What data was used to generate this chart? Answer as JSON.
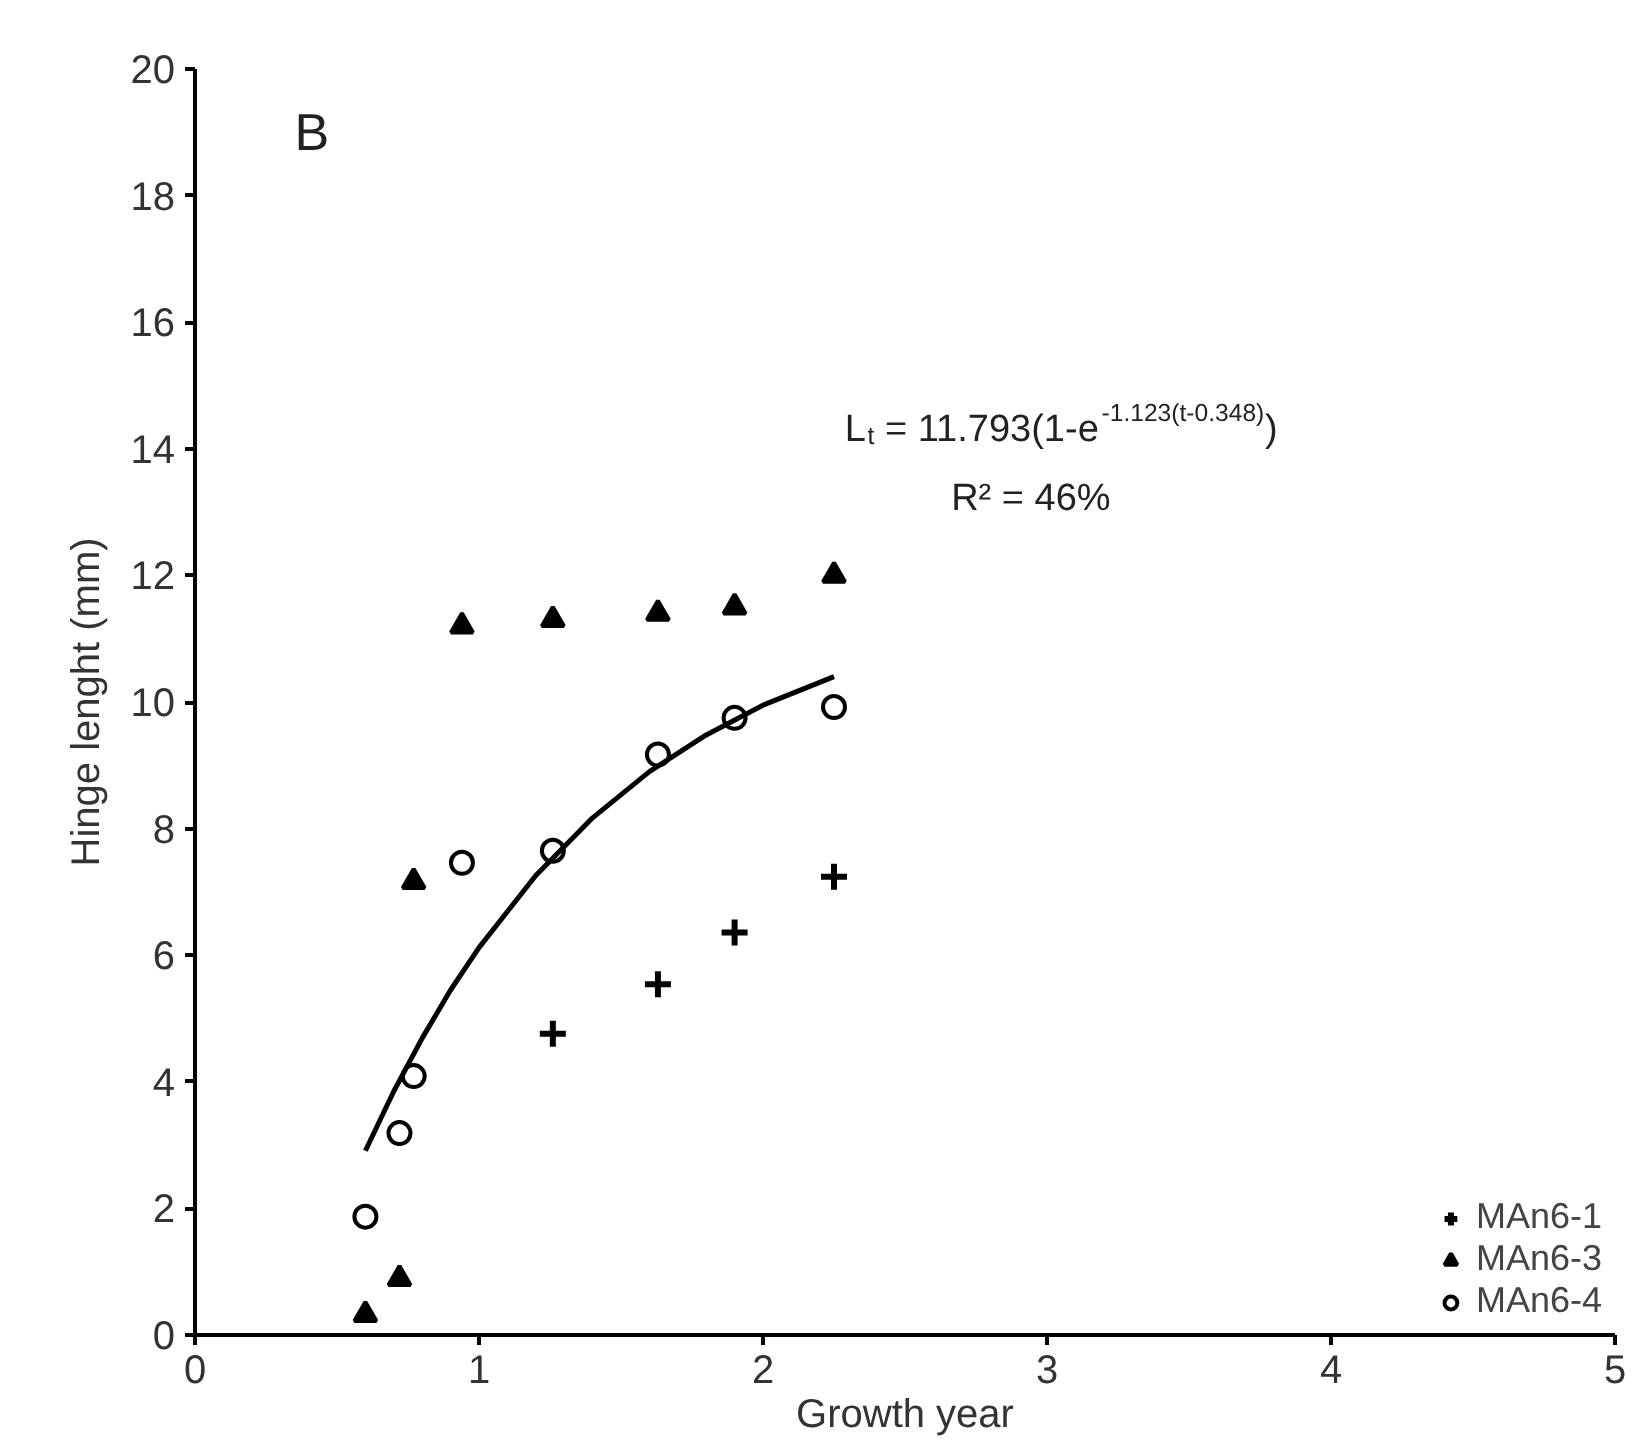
{
  "chart_data": {
    "type": "scatter",
    "xlabel": "Growth year",
    "ylabel": "Hinge lenght (mm)",
    "xlim": [
      0,
      5
    ],
    "ylim": [
      0,
      20
    ],
    "xticks": [
      0,
      1,
      2,
      3,
      4,
      5
    ],
    "yticks": [
      0,
      2,
      4,
      6,
      8,
      10,
      12,
      14,
      16,
      18,
      20
    ],
    "grid": false,
    "legend": "bottom right",
    "annotations": [
      {
        "text": "B"
      },
      {
        "text": "L$_{t}$ = 11.793(1-e$^{-1.123(t-0.348)}$)"
      },
      {
        "text": "R² = 46%"
      }
    ],
    "series": [
      {
        "name": "MAn6-1",
        "color": "#000000",
        "marker": "cross",
        "x": [
          1.26,
          1.63,
          1.9,
          2.25
        ],
        "values": [
          4.76,
          5.54,
          6.36,
          7.24
        ]
      },
      {
        "name": "MAn6-3",
        "color": "#000000",
        "marker": "triangle",
        "x": [
          0.6,
          0.72,
          0.77,
          0.94,
          1.26,
          1.63,
          1.9,
          2.25
        ],
        "values": [
          0.32,
          0.89,
          7.16,
          11.2,
          11.3,
          11.4,
          11.5,
          12.0
        ]
      },
      {
        "name": "MAn6-4",
        "color": "#000000",
        "marker": "circle",
        "x": [
          0.6,
          0.72,
          0.77,
          0.94,
          1.26,
          1.63,
          1.9,
          2.25
        ],
        "values": [
          1.87,
          3.19,
          4.09,
          7.46,
          7.65,
          9.17,
          9.75,
          9.92
        ]
      },
      {
        "type": "line",
        "color": "#000000",
        "marker": "none",
        "line_style": "solid",
        "x": [
          0.6,
          0.7,
          0.8,
          0.9,
          1.0,
          1.2,
          1.4,
          1.6,
          1.8,
          2.0,
          2.25
        ],
        "values": [
          2.91,
          3.85,
          4.69,
          5.45,
          6.12,
          7.26,
          8.17,
          8.9,
          9.48,
          9.95,
          10.4
        ]
      }
    ]
  }
}
